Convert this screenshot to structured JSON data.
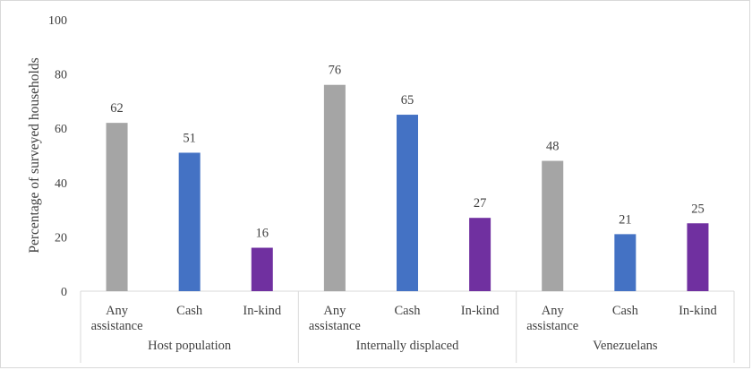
{
  "chart_data": {
    "type": "bar",
    "title": "",
    "xlabel": "",
    "ylabel": "Percentage of surveyed households",
    "ylim": [
      0,
      100
    ],
    "yticks": [
      0,
      20,
      40,
      60,
      80,
      100
    ],
    "grid": false,
    "legend": "none",
    "groups": [
      {
        "name": "Host population",
        "bars": [
          {
            "label": [
              "Any",
              "assistance"
            ],
            "value": 62,
            "display": "62",
            "color": "#a5a5a5"
          },
          {
            "label": [
              "Cash"
            ],
            "value": 51,
            "display": "51",
            "color": "#4472c4"
          },
          {
            "label": [
              "In-kind"
            ],
            "value": 16,
            "display": "16",
            "color": "#7030a0"
          }
        ]
      },
      {
        "name": "Internally displaced",
        "bars": [
          {
            "label": [
              "Any",
              "assistance"
            ],
            "value": 76,
            "display": "76",
            "color": "#a5a5a5"
          },
          {
            "label": [
              "Cash"
            ],
            "value": 65,
            "display": "65",
            "color": "#4472c4"
          },
          {
            "label": [
              "In-kind"
            ],
            "value": 27,
            "display": "27",
            "color": "#7030a0"
          }
        ]
      },
      {
        "name": "Venezuelans",
        "bars": [
          {
            "label": [
              "Any",
              "assistance"
            ],
            "value": 48,
            "display": "48",
            "color": "#a5a5a5"
          },
          {
            "label": [
              "Cash"
            ],
            "value": 21,
            "display": "21",
            "color": "#4472c4"
          },
          {
            "label": [
              "In-kind"
            ],
            "value": 25,
            "display": "25",
            "color": "#7030a0"
          }
        ]
      }
    ]
  }
}
